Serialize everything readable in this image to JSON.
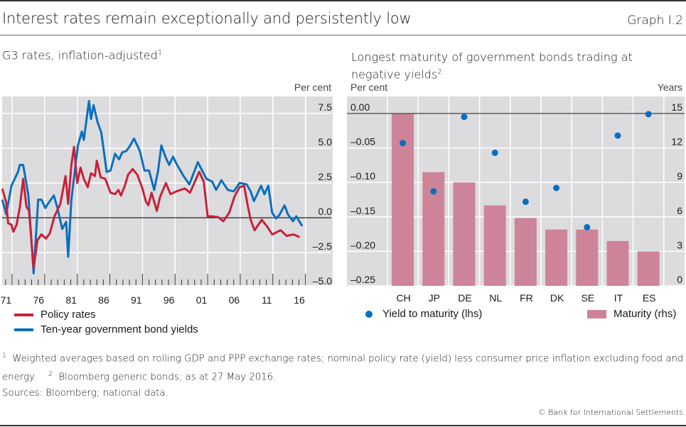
{
  "header": {
    "title": "Interest rates remain exceptionally and persistently low",
    "graph_id": "Graph I.2"
  },
  "colors": {
    "policy": "#c8213a",
    "yield": "#0a6fbe",
    "bar": "#ce8498",
    "dot": "#0a6fbe",
    "plot_bg": "#dcdcde"
  },
  "chart_data": [
    {
      "type": "line",
      "title": "G3 rates, inflation-adjusted",
      "title_footnote": "1",
      "ylabel": "Per cent",
      "xlabel": "",
      "ylim": [
        -5.0,
        8.75
      ],
      "xlim": [
        1970.5,
        2017.0
      ],
      "yticks": [
        7.5,
        5.0,
        2.5,
        0.0,
        -2.5,
        -5.0
      ],
      "ytick_labels": [
        "7.5",
        "5.0",
        "2.5",
        "0.0",
        "–2.5",
        "–5.0"
      ],
      "xtick_labels": [
        "71",
        "76",
        "81",
        "86",
        "91",
        "96",
        "01",
        "06",
        "11",
        "16"
      ],
      "xtick_years": [
        1971,
        1976,
        1981,
        1986,
        1991,
        1996,
        2001,
        2006,
        2011,
        2016
      ],
      "grid": true,
      "legend_position": "bottom-left",
      "series": [
        {
          "name": "Policy rates",
          "color": "#c8213a",
          "points": [
            [
              1970.5,
              2.1
            ],
            [
              1971.1,
              1.1
            ],
            [
              1971.4,
              -0.4
            ],
            [
              1971.9,
              -0.5
            ],
            [
              1972.2,
              -1.0
            ],
            [
              1972.7,
              -0.5
            ],
            [
              1973.2,
              0.8
            ],
            [
              1973.7,
              2.8
            ],
            [
              1974.2,
              0.8
            ],
            [
              1974.6,
              0.5
            ],
            [
              1975.3,
              -3.6
            ],
            [
              1975.9,
              -1.6
            ],
            [
              1976.5,
              -1.2
            ],
            [
              1977.2,
              -1.5
            ],
            [
              1977.8,
              -1.1
            ],
            [
              1978.5,
              0.1
            ],
            [
              1979.4,
              1.0
            ],
            [
              1980.2,
              3.0
            ],
            [
              1980.6,
              1.0
            ],
            [
              1981.1,
              3.8
            ],
            [
              1981.5,
              5.1
            ],
            [
              1982.0,
              2.5
            ],
            [
              1982.5,
              3.6
            ],
            [
              1983.0,
              2.8
            ],
            [
              1983.6,
              2.2
            ],
            [
              1984.1,
              3.2
            ],
            [
              1984.7,
              3.0
            ],
            [
              1985.0,
              4.1
            ],
            [
              1985.6,
              2.9
            ],
            [
              1986.3,
              2.8
            ],
            [
              1987.1,
              1.8
            ],
            [
              1987.8,
              1.7
            ],
            [
              1988.3,
              2.0
            ],
            [
              1988.7,
              1.6
            ],
            [
              1989.3,
              2.3
            ],
            [
              1989.8,
              3.1
            ],
            [
              1990.5,
              3.5
            ],
            [
              1991.2,
              3.1
            ],
            [
              1992.0,
              2.1
            ],
            [
              1992.5,
              1.2
            ],
            [
              1992.9,
              0.9
            ],
            [
              1993.4,
              1.8
            ],
            [
              1994.2,
              0.5
            ],
            [
              1994.7,
              1.5
            ],
            [
              1995.6,
              2.5
            ],
            [
              1996.3,
              1.7
            ],
            [
              1997.2,
              1.9
            ],
            [
              1998.5,
              2.1
            ],
            [
              1999.3,
              1.8
            ],
            [
              2000.7,
              3.3
            ],
            [
              2001.4,
              2.6
            ],
            [
              2002.0,
              0.1
            ],
            [
              2002.6,
              0.1
            ],
            [
              2003.6,
              0.05
            ],
            [
              2004.4,
              -0.25
            ],
            [
              2005.3,
              0.35
            ],
            [
              2006.1,
              1.5
            ],
            [
              2006.9,
              2.2
            ],
            [
              2007.6,
              2.3
            ],
            [
              2008.1,
              1.0
            ],
            [
              2008.6,
              -0.15
            ],
            [
              2009.2,
              -0.9
            ],
            [
              2010.3,
              -0.15
            ],
            [
              2011.1,
              -0.6
            ],
            [
              2011.9,
              -1.2
            ],
            [
              2013.2,
              -0.9
            ],
            [
              2014.1,
              -1.3
            ],
            [
              2015.2,
              -1.2
            ],
            [
              2016.1,
              -1.4
            ]
          ]
        },
        {
          "name": "Ten-year government bond yields",
          "color": "#0a6fbe",
          "points": [
            [
              1970.5,
              1.3
            ],
            [
              1971.1,
              0.25
            ],
            [
              1971.9,
              2.3
            ],
            [
              1972.9,
              3.3
            ],
            [
              1973.2,
              3.8
            ],
            [
              1973.7,
              3.8
            ],
            [
              1974.0,
              3.0
            ],
            [
              1974.5,
              1.6
            ],
            [
              1975.3,
              -4.0
            ],
            [
              1976.0,
              1.3
            ],
            [
              1976.5,
              1.3
            ],
            [
              1977.1,
              0.7
            ],
            [
              1977.5,
              1.0
            ],
            [
              1978.4,
              1.6
            ],
            [
              1978.9,
              0.8
            ],
            [
              1979.7,
              -0.8
            ],
            [
              1980.3,
              -0.3
            ],
            [
              1980.6,
              -2.8
            ],
            [
              1981.1,
              1.3
            ],
            [
              1982.1,
              5.2
            ],
            [
              1982.7,
              6.2
            ],
            [
              1983.0,
              5.6
            ],
            [
              1983.8,
              8.4
            ],
            [
              1984.1,
              7.1
            ],
            [
              1984.5,
              8.1
            ],
            [
              1985.1,
              6.9
            ],
            [
              1985.7,
              6.1
            ],
            [
              1986.5,
              3.3
            ],
            [
              1987.1,
              3.4
            ],
            [
              1987.8,
              4.6
            ],
            [
              1988.4,
              4.2
            ],
            [
              1988.9,
              4.7
            ],
            [
              1989.5,
              4.8
            ],
            [
              1990.0,
              5.1
            ],
            [
              1990.7,
              5.7
            ],
            [
              1991.6,
              4.8
            ],
            [
              1992.3,
              3.4
            ],
            [
              1993.0,
              3.4
            ],
            [
              1993.8,
              2.0
            ],
            [
              1994.4,
              3.4
            ],
            [
              1994.9,
              5.2
            ],
            [
              1995.6,
              4.3
            ],
            [
              1996.1,
              3.8
            ],
            [
              1996.7,
              4.4
            ],
            [
              1997.2,
              3.9
            ],
            [
              1998.3,
              3.0
            ],
            [
              1999.2,
              2.4
            ],
            [
              2000.5,
              4.0
            ],
            [
              2001.8,
              2.8
            ],
            [
              2002.7,
              2.6
            ],
            [
              2003.3,
              2.0
            ],
            [
              2004.1,
              2.7
            ],
            [
              2005.1,
              2.0
            ],
            [
              2006.0,
              1.9
            ],
            [
              2006.9,
              2.5
            ],
            [
              2008.0,
              2.4
            ],
            [
              2008.6,
              1.9
            ],
            [
              2009.1,
              1.2
            ],
            [
              2010.2,
              2.3
            ],
            [
              2010.7,
              1.7
            ],
            [
              2011.3,
              2.3
            ],
            [
              2011.9,
              0.35
            ],
            [
              2012.5,
              -0.05
            ],
            [
              2013.0,
              0.2
            ],
            [
              2013.8,
              0.9
            ],
            [
              2014.3,
              0.25
            ],
            [
              2015.1,
              -0.25
            ],
            [
              2015.6,
              0.1
            ],
            [
              2016.5,
              -0.6
            ]
          ]
        }
      ]
    },
    {
      "type": "bar",
      "title": "Longest maturity of government bonds trading at negative yields",
      "title_footnote": "2",
      "ylabel_left": "Per cent",
      "ylabel_right": "Years",
      "categories": [
        "CH",
        "JP",
        "DE",
        "NL",
        "FR",
        "DK",
        "SE",
        "IT",
        "ES"
      ],
      "ylim_left": [
        -0.25,
        0.0
      ],
      "ylim_right": [
        0,
        15
      ],
      "yticks_left_labels": [
        "0.00",
        "–0.05",
        "–0.10",
        "–0.15",
        "–0.20",
        "–0.25"
      ],
      "yticks_left": [
        0.0,
        -0.05,
        -0.1,
        -0.15,
        -0.2,
        -0.25
      ],
      "yticks_right": [
        15,
        12,
        9,
        6,
        3,
        0
      ],
      "grid": true,
      "legend_position": "bottom",
      "series": [
        {
          "name": "Yield to maturity (lhs)",
          "type": "scatter",
          "axis": "left",
          "color": "#0a6fbe",
          "values": [
            -0.043,
            -0.113,
            -0.005,
            -0.057,
            -0.128,
            -0.108,
            -0.165,
            -0.032,
            -0.001
          ]
        },
        {
          "name": "Maturity (rhs)",
          "type": "bar",
          "axis": "right",
          "color": "#ce8498",
          "values": [
            15.0,
            9.9,
            9.0,
            7.0,
            5.9,
            4.9,
            4.9,
            3.9,
            3.0
          ]
        }
      ]
    }
  ],
  "left_legend": [
    "Policy rates",
    "Ten-year government bond yields"
  ],
  "right_legend": [
    "Yield to maturity (lhs)",
    "Maturity (rhs)"
  ],
  "footnotes": {
    "n1": "1",
    "text1": "Weighted averages based on rolling GDP and PPP exchange rates; nominal policy rate (yield) less consumer price inflation excluding food and energy.",
    "n2": "2",
    "text2": "Bloomberg generic bonds; as at 27 May 2016."
  },
  "sources": "Sources: Bloomberg; national data.",
  "copyright": "© Bank for International Settlements"
}
